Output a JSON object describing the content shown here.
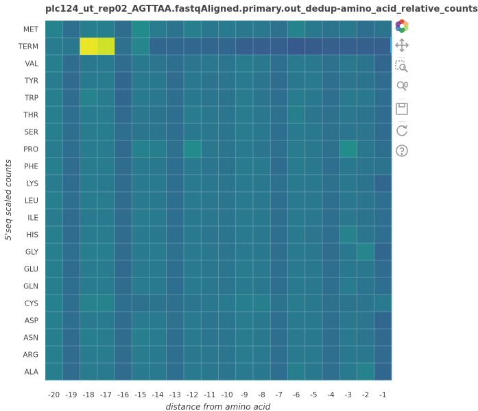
{
  "title": "plc124_ut_rep02_AGTTAA.fastqAligned.primary.out_dedup-amino_acid_relative_counts",
  "toolbar": {
    "tools": [
      {
        "name": "bokeh-logo-icon"
      },
      {
        "name": "pan-tool-icon"
      },
      {
        "name": "box-zoom-tool-icon"
      },
      {
        "name": "wheel-zoom-tool-icon"
      },
      {
        "name": "save-tool-icon"
      },
      {
        "name": "reset-tool-icon"
      },
      {
        "name": "help-tool-icon"
      }
    ],
    "active_tool": "pan-tool-icon"
  },
  "chart_data": {
    "type": "heatmap",
    "xlabel": "distance from amino acid",
    "ylabel": "5'seq scaled counts",
    "x_categories": [
      "-20",
      "-19",
      "-18",
      "-17",
      "-16",
      "-15",
      "-14",
      "-13",
      "-12",
      "-11",
      "-10",
      "-9",
      "-8",
      "-7",
      "-6",
      "-5",
      "-4",
      "-3",
      "-2",
      "-1"
    ],
    "y_categories": [
      "MET",
      "TERM",
      "VAL",
      "TYR",
      "TRP",
      "THR",
      "SER",
      "PRO",
      "PHE",
      "LYS",
      "LEU",
      "ILE",
      "HIS",
      "GLY",
      "GLU",
      "GLN",
      "CYS",
      "ASP",
      "ASN",
      "ARG",
      "ALA"
    ],
    "colormap": "viridis",
    "value_range": [
      0,
      1
    ],
    "grid": true,
    "values": [
      [
        0.45,
        0.36,
        0.43,
        0.43,
        0.35,
        0.48,
        0.42,
        0.38,
        0.43,
        0.4,
        0.41,
        0.4,
        0.4,
        0.37,
        0.45,
        0.4,
        0.38,
        0.4,
        0.36,
        0.38
      ],
      [
        0.42,
        0.4,
        0.97,
        0.93,
        0.37,
        0.46,
        0.33,
        0.33,
        0.33,
        0.33,
        0.33,
        0.3,
        0.3,
        0.3,
        0.28,
        0.29,
        0.3,
        0.3,
        0.3,
        0.3
      ],
      [
        0.43,
        0.35,
        0.4,
        0.41,
        0.35,
        0.4,
        0.39,
        0.36,
        0.39,
        0.4,
        0.39,
        0.42,
        0.4,
        0.36,
        0.41,
        0.4,
        0.37,
        0.4,
        0.38,
        0.33
      ],
      [
        0.42,
        0.34,
        0.41,
        0.42,
        0.33,
        0.41,
        0.4,
        0.35,
        0.4,
        0.38,
        0.39,
        0.41,
        0.39,
        0.35,
        0.4,
        0.41,
        0.36,
        0.39,
        0.38,
        0.35
      ],
      [
        0.43,
        0.35,
        0.45,
        0.42,
        0.33,
        0.41,
        0.4,
        0.36,
        0.4,
        0.39,
        0.38,
        0.42,
        0.39,
        0.36,
        0.42,
        0.4,
        0.36,
        0.41,
        0.4,
        0.36
      ],
      [
        0.43,
        0.36,
        0.42,
        0.42,
        0.34,
        0.4,
        0.38,
        0.36,
        0.42,
        0.4,
        0.39,
        0.42,
        0.4,
        0.37,
        0.43,
        0.39,
        0.37,
        0.4,
        0.38,
        0.35
      ],
      [
        0.43,
        0.36,
        0.42,
        0.42,
        0.36,
        0.39,
        0.39,
        0.36,
        0.4,
        0.4,
        0.39,
        0.42,
        0.4,
        0.36,
        0.41,
        0.4,
        0.37,
        0.39,
        0.39,
        0.35
      ],
      [
        0.42,
        0.36,
        0.42,
        0.42,
        0.34,
        0.44,
        0.43,
        0.37,
        0.48,
        0.4,
        0.39,
        0.41,
        0.39,
        0.37,
        0.42,
        0.4,
        0.37,
        0.49,
        0.4,
        0.36
      ],
      [
        0.43,
        0.35,
        0.42,
        0.42,
        0.35,
        0.41,
        0.4,
        0.36,
        0.41,
        0.39,
        0.38,
        0.42,
        0.41,
        0.35,
        0.42,
        0.4,
        0.36,
        0.4,
        0.39,
        0.38
      ],
      [
        0.42,
        0.35,
        0.42,
        0.41,
        0.35,
        0.41,
        0.41,
        0.36,
        0.41,
        0.4,
        0.39,
        0.41,
        0.4,
        0.37,
        0.41,
        0.4,
        0.37,
        0.4,
        0.38,
        0.33
      ],
      [
        0.43,
        0.36,
        0.42,
        0.42,
        0.35,
        0.41,
        0.4,
        0.36,
        0.41,
        0.4,
        0.39,
        0.41,
        0.4,
        0.36,
        0.41,
        0.4,
        0.36,
        0.4,
        0.39,
        0.36
      ],
      [
        0.42,
        0.35,
        0.41,
        0.41,
        0.35,
        0.42,
        0.41,
        0.36,
        0.4,
        0.4,
        0.39,
        0.41,
        0.4,
        0.36,
        0.41,
        0.4,
        0.36,
        0.4,
        0.38,
        0.36
      ],
      [
        0.43,
        0.35,
        0.42,
        0.42,
        0.35,
        0.41,
        0.4,
        0.36,
        0.41,
        0.39,
        0.39,
        0.41,
        0.4,
        0.36,
        0.41,
        0.39,
        0.36,
        0.45,
        0.39,
        0.36
      ],
      [
        0.43,
        0.36,
        0.43,
        0.43,
        0.35,
        0.41,
        0.42,
        0.37,
        0.41,
        0.4,
        0.39,
        0.41,
        0.4,
        0.36,
        0.41,
        0.4,
        0.35,
        0.4,
        0.46,
        0.33
      ],
      [
        0.43,
        0.35,
        0.42,
        0.42,
        0.34,
        0.41,
        0.41,
        0.36,
        0.41,
        0.4,
        0.39,
        0.42,
        0.41,
        0.36,
        0.41,
        0.4,
        0.36,
        0.4,
        0.4,
        0.35
      ],
      [
        0.43,
        0.36,
        0.42,
        0.42,
        0.35,
        0.42,
        0.41,
        0.36,
        0.41,
        0.4,
        0.39,
        0.41,
        0.4,
        0.36,
        0.41,
        0.4,
        0.36,
        0.42,
        0.39,
        0.36
      ],
      [
        0.44,
        0.36,
        0.45,
        0.45,
        0.36,
        0.37,
        0.38,
        0.37,
        0.39,
        0.4,
        0.41,
        0.43,
        0.43,
        0.38,
        0.42,
        0.4,
        0.37,
        0.38,
        0.39,
        0.41
      ],
      [
        0.43,
        0.36,
        0.41,
        0.41,
        0.35,
        0.41,
        0.41,
        0.37,
        0.41,
        0.39,
        0.39,
        0.42,
        0.4,
        0.36,
        0.41,
        0.4,
        0.36,
        0.4,
        0.39,
        0.33
      ],
      [
        0.43,
        0.35,
        0.43,
        0.42,
        0.35,
        0.43,
        0.42,
        0.36,
        0.41,
        0.39,
        0.39,
        0.42,
        0.4,
        0.36,
        0.41,
        0.4,
        0.36,
        0.41,
        0.39,
        0.34
      ],
      [
        0.43,
        0.35,
        0.42,
        0.42,
        0.35,
        0.42,
        0.41,
        0.36,
        0.4,
        0.4,
        0.39,
        0.42,
        0.41,
        0.36,
        0.41,
        0.41,
        0.36,
        0.4,
        0.4,
        0.34
      ],
      [
        0.43,
        0.35,
        0.42,
        0.41,
        0.35,
        0.41,
        0.41,
        0.36,
        0.41,
        0.4,
        0.39,
        0.41,
        0.4,
        0.36,
        0.43,
        0.4,
        0.36,
        0.41,
        0.45,
        0.33
      ]
    ]
  }
}
